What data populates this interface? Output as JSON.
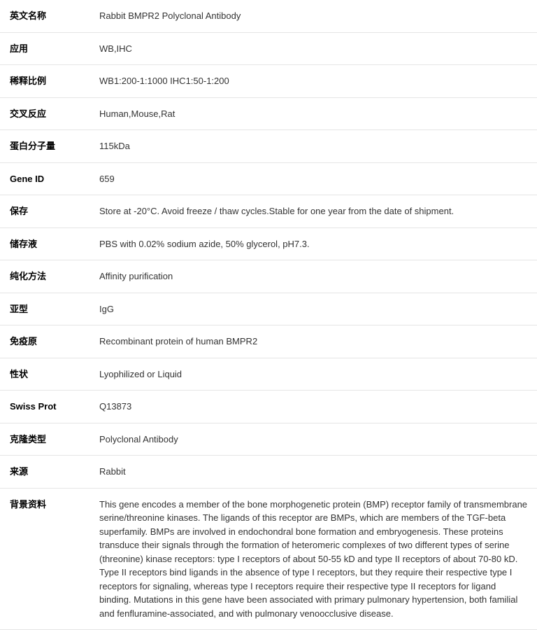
{
  "rows": [
    {
      "label": "英文名称",
      "value": "Rabbit BMPR2 Polyclonal Antibody"
    },
    {
      "label": "应用",
      "value": "WB,IHC"
    },
    {
      "label": "稀释比例",
      "value": "WB1:200-1:1000 IHC1:50-1:200"
    },
    {
      "label": "交叉反应",
      "value": "Human,Mouse,Rat"
    },
    {
      "label": "蛋白分子量",
      "value": "115kDa"
    },
    {
      "label": "Gene ID",
      "value": "659"
    },
    {
      "label": "保存",
      "value": "Store at -20°C. Avoid freeze / thaw cycles.Stable for one year from the date of shipment."
    },
    {
      "label": "储存液",
      "value": "PBS with 0.02% sodium azide, 50% glycerol, pH7.3."
    },
    {
      "label": "纯化方法",
      "value": "Affinity purification"
    },
    {
      "label": "亚型",
      "value": "IgG"
    },
    {
      "label": "免疫原",
      "value": "Recombinant protein of human BMPR2"
    },
    {
      "label": "性状",
      "value": "Lyophilized or Liquid"
    },
    {
      "label": "Swiss Prot",
      "value": "Q13873"
    },
    {
      "label": "克隆类型",
      "value": "Polyclonal Antibody"
    },
    {
      "label": "来源",
      "value": "Rabbit"
    },
    {
      "label": "背景资料",
      "value": "This gene encodes a member of the bone morphogenetic protein (BMP) receptor family of transmembrane serine/threonine kinases. The ligands of this receptor are BMPs, which are members of the TGF-beta superfamily. BMPs are involved in endochondral bone formation and embryogenesis. These proteins transduce their signals through the formation of heteromeric complexes of two different types of serine (threonine) kinase receptors: type I receptors of about 50-55 kD and type II receptors of about 70-80 kD. Type II receptors bind ligands in the absence of type I receptors, but they require their respective type I receptors for signaling, whereas type I receptors require their respective type II receptors for ligand binding. Mutations in this gene have been associated with primary pulmonary hypertension, both familial and fenfluramine-associated, and with pulmonary venoocclusive disease."
    }
  ]
}
